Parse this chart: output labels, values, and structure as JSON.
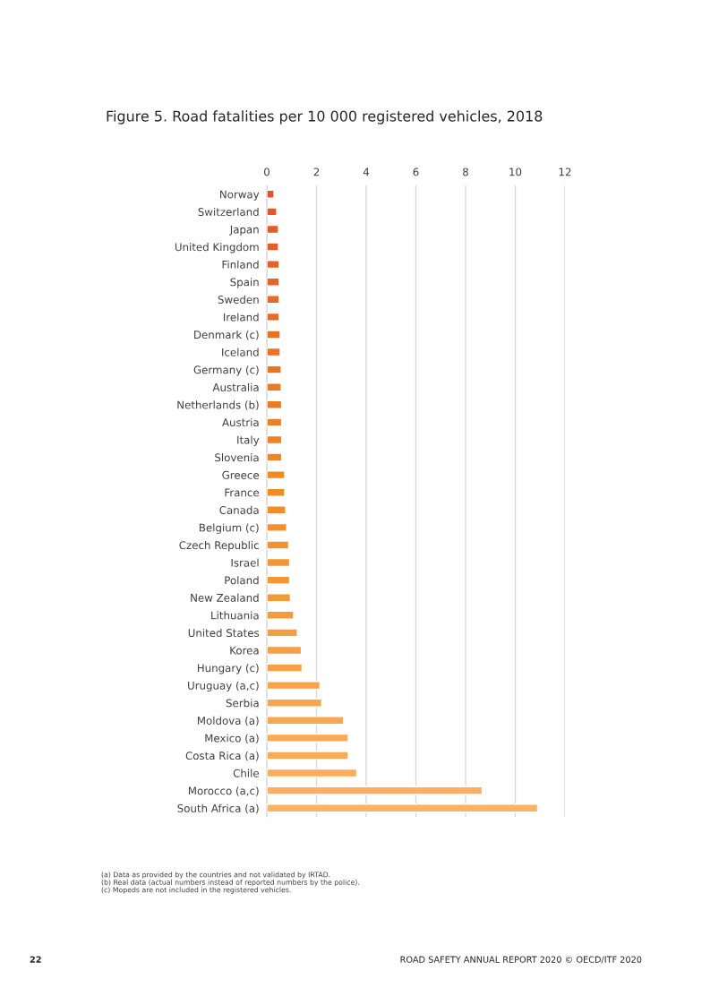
{
  "chart_data": {
    "type": "bar",
    "orientation": "horizontal",
    "title": "Figure 5. Road fatalities per 10 000 registered vehicles, 2018",
    "categories": [
      "Norway",
      "Switzerland",
      "Japan",
      "United Kingdom",
      "Finland",
      "Spain",
      "Sweden",
      "Ireland",
      "Denmark (c)",
      "Iceland",
      "Germany (c)",
      "Australia",
      "Netherlands (b)",
      "Austria",
      "Italy",
      "Slovenia",
      "Greece",
      "France",
      "Canada",
      "Belgium (c)",
      "Czech Republic",
      "Israel",
      "Poland",
      "New Zealand",
      "Lithuania",
      "United States",
      "Korea",
      "Hungary (c)",
      "Uruguay (a,c)",
      "Serbia",
      "Moldova (a)",
      "Mexico (a)",
      "Costa Rica (a)",
      "Chile",
      "Morocco (a,c)",
      "South Africa (a)"
    ],
    "values": [
      0.29,
      0.4,
      0.47,
      0.47,
      0.5,
      0.5,
      0.5,
      0.5,
      0.54,
      0.54,
      0.58,
      0.58,
      0.6,
      0.6,
      0.6,
      0.6,
      0.72,
      0.72,
      0.76,
      0.8,
      0.88,
      0.92,
      0.92,
      0.95,
      1.08,
      1.23,
      1.39,
      1.42,
      2.14,
      2.21,
      3.09,
      3.28,
      3.28,
      3.62,
      8.67,
      10.9
    ],
    "colors": [
      "#e2532a",
      "#e3562a",
      "#e45a29",
      "#e55d29",
      "#e66128",
      "#e66428",
      "#e76827",
      "#e86b27",
      "#e96f26",
      "#ea7226",
      "#eb7525",
      "#ec7925",
      "#ec7c24",
      "#ed8024",
      "#ee8323",
      "#ef8723",
      "#f08a22",
      "#f08c25",
      "#f18e29",
      "#f2902c",
      "#f2922f",
      "#f39533",
      "#f39736",
      "#f49939",
      "#f59b3d",
      "#f59d40",
      "#f69f44",
      "#f6a147",
      "#f7a34a",
      "#f7a54e",
      "#f8a751",
      "#f8aa54",
      "#f9ac58",
      "#faae5b",
      "#fab05e",
      "#fbb262"
    ],
    "xlim": [
      0,
      12
    ],
    "xticks": [
      0,
      2,
      4,
      6,
      8,
      10,
      12
    ],
    "grid": "x",
    "annotations": [
      "(a) Data as provided by the countries and not validated by IRTAD.",
      "(b) Real data (actual numbers instead of reported numbers by the police).",
      "(c) Mopeds are not included in the registered vehicles.",
      "22",
      "ROAD SAFETY ANNUAL REPORT 2020 © OECD/ITF 2020"
    ]
  }
}
